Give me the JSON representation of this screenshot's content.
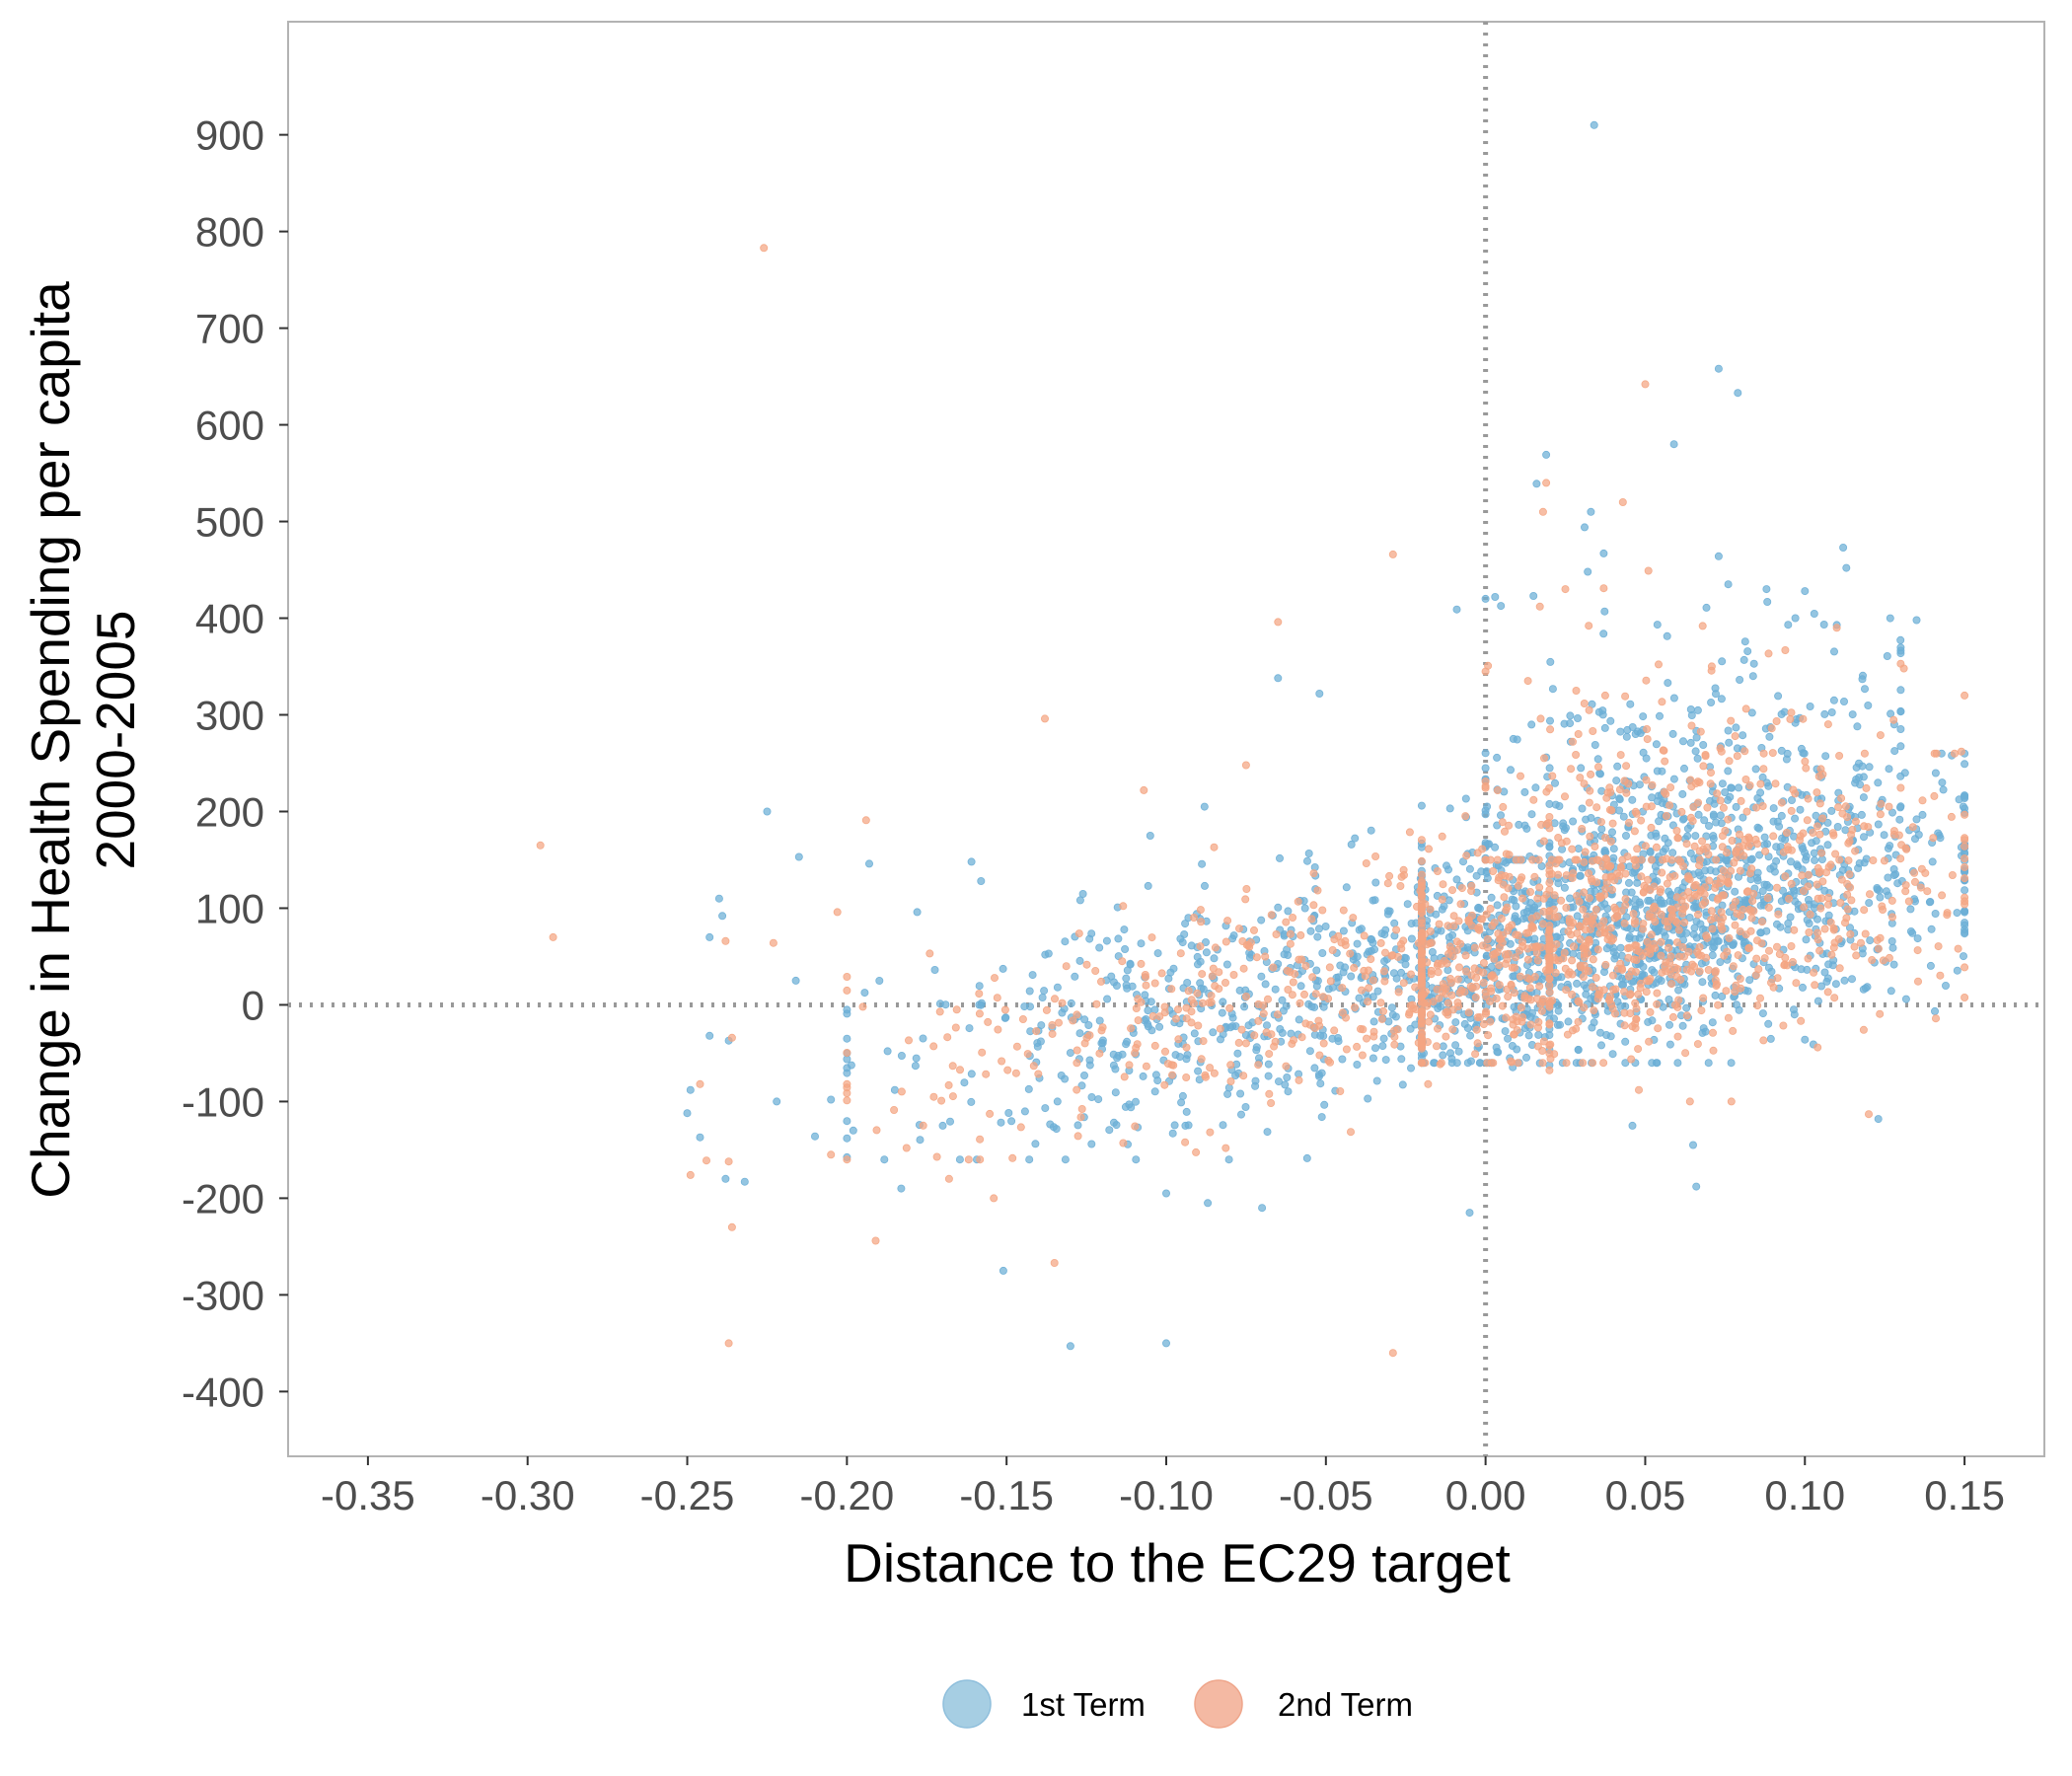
{
  "chart_data": {
    "type": "scatter",
    "xlabel": "Distance to the EC29 target",
    "ylabel_lines": [
      "Change in Health Spending per capita",
      "2000-2005"
    ],
    "xlim": [
      -0.375,
      0.175
    ],
    "ylim": [
      -467,
      1017
    ],
    "x_ticks": [
      -0.35,
      -0.3,
      -0.25,
      -0.2,
      -0.15,
      -0.1,
      -0.05,
      0.0,
      0.05,
      0.1,
      0.15
    ],
    "x_tick_labels": [
      "-0.35",
      "-0.30",
      "-0.25",
      "-0.20",
      "-0.15",
      "-0.10",
      "-0.05",
      "0.00",
      "0.05",
      "0.10",
      "0.15"
    ],
    "y_ticks": [
      -400,
      -300,
      -200,
      -100,
      0,
      100,
      200,
      300,
      400,
      500,
      600,
      700,
      800,
      900
    ],
    "y_tick_labels": [
      "-400",
      "-300",
      "-200",
      "-100",
      "0",
      "100",
      "200",
      "300",
      "400",
      "500",
      "600",
      "700",
      "800",
      "900"
    ],
    "reference_lines": {
      "x": 0,
      "y": 0,
      "style": "dotted",
      "color": "#999999"
    },
    "grid": false,
    "legend_position": "bottom",
    "series": [
      {
        "name": "1st Term",
        "color": "#6baed6",
        "points": [
          [
            0.034,
            910
          ],
          [
            0.073,
            658
          ],
          [
            0.079,
            633
          ],
          [
            0.059,
            580
          ],
          [
            0.019,
            569
          ],
          [
            0.016,
            539
          ],
          [
            0.033,
            510
          ],
          [
            0.031,
            494
          ],
          [
            0.112,
            473
          ],
          [
            0.037,
            467
          ],
          [
            0.073,
            464
          ],
          [
            0.032,
            448
          ],
          [
            0.113,
            452
          ],
          [
            0.076,
            435
          ],
          [
            0.1,
            428
          ],
          [
            0.088,
            430
          ],
          [
            0.003,
            422
          ],
          [
            0.015,
            423
          ],
          [
            -0.009,
            409
          ],
          [
            0.135,
            398
          ],
          [
            0.097,
            400
          ],
          [
            0.11,
            393
          ],
          [
            -0.052,
            322
          ],
          [
            -0.065,
            338
          ],
          [
            -0.225,
            200
          ],
          [
            -0.215,
            153
          ],
          [
            -0.161,
            148
          ],
          [
            -0.193,
            146
          ],
          [
            -0.158,
            128
          ],
          [
            -0.178,
            96
          ],
          [
            -0.105,
            175
          ],
          [
            -0.088,
            205
          ],
          [
            -0.24,
            110
          ],
          [
            -0.243,
            70
          ],
          [
            -0.239,
            92
          ],
          [
            -0.216,
            25
          ],
          [
            -0.237,
            -37
          ],
          [
            -0.243,
            -32
          ],
          [
            -0.249,
            -88
          ],
          [
            -0.246,
            -137
          ],
          [
            -0.25,
            -112
          ],
          [
            -0.238,
            -180
          ],
          [
            -0.232,
            -183
          ],
          [
            -0.222,
            -100
          ],
          [
            -0.21,
            -136
          ],
          [
            -0.205,
            -98
          ],
          [
            -0.198,
            -130
          ],
          [
            -0.185,
            -88
          ],
          [
            -0.183,
            -190
          ],
          [
            -0.17,
            -125
          ],
          [
            -0.151,
            -275
          ],
          [
            -0.13,
            -353
          ],
          [
            -0.1,
            -350
          ],
          [
            -0.087,
            -205
          ],
          [
            -0.1,
            -195
          ],
          [
            -0.07,
            -210
          ],
          [
            0.065,
            -145
          ],
          [
            0.066,
            -188
          ],
          [
            0.046,
            -125
          ],
          [
            0.1,
            -36
          ],
          [
            0.123,
            -118
          ],
          [
            -0.005,
            -215
          ],
          [
            0.143,
            230
          ],
          [
            0.149,
            163
          ],
          [
            0.15,
            97
          ],
          [
            0.14,
            148
          ],
          [
            0.128,
            290
          ],
          [
            0.146,
            258
          ],
          [
            0.118,
            337
          ]
        ],
        "cloud": [
          {
            "n": 1300,
            "x": [
              -0.02,
              0.15
            ],
            "y": [
              -60,
              260
            ],
            "mx": 0.05,
            "my": 80,
            "sx": 0.05,
            "sy": 60
          },
          {
            "n": 650,
            "x": [
              -0.2,
              0.02
            ],
            "y": [
              -160,
              220
            ],
            "mx": -0.06,
            "my": 10,
            "sx": 0.06,
            "sy": 60
          },
          {
            "n": 260,
            "x": [
              0.0,
              0.13
            ],
            "y": [
              150,
              420
            ],
            "mx": 0.06,
            "my": 240,
            "sx": 0.035,
            "sy": 70
          }
        ]
      },
      {
        "name": "2nd Term",
        "color": "#f4a582",
        "points": [
          [
            -0.226,
            783
          ],
          [
            0.05,
            642
          ],
          [
            -0.296,
            165
          ],
          [
            -0.292,
            70
          ],
          [
            0.019,
            540
          ],
          [
            0.018,
            510
          ],
          [
            0.043,
            520
          ],
          [
            -0.029,
            466
          ],
          [
            0.051,
            449
          ],
          [
            0.037,
            431
          ],
          [
            0.025,
            430
          ],
          [
            0.017,
            412
          ],
          [
            -0.065,
            396
          ],
          [
            0.068,
            392
          ],
          [
            0.11,
            390
          ],
          [
            -0.138,
            296
          ],
          [
            -0.075,
            248
          ],
          [
            -0.107,
            222
          ],
          [
            -0.194,
            191
          ],
          [
            -0.085,
            163
          ],
          [
            -0.203,
            96
          ],
          [
            -0.223,
            64
          ],
          [
            -0.238,
            66
          ],
          [
            -0.195,
            -2
          ],
          [
            -0.236,
            -34
          ],
          [
            -0.246,
            -82
          ],
          [
            -0.244,
            -161
          ],
          [
            -0.237,
            -162
          ],
          [
            -0.249,
            -176
          ],
          [
            -0.236,
            -230
          ],
          [
            -0.237,
            -350
          ],
          [
            -0.191,
            -244
          ],
          [
            -0.205,
            -155
          ],
          [
            -0.168,
            -180
          ],
          [
            -0.154,
            -200
          ],
          [
            -0.135,
            -267
          ],
          [
            -0.029,
            -360
          ],
          [
            0.048,
            -88
          ],
          [
            0.064,
            -100
          ],
          [
            0.077,
            -100
          ],
          [
            0.104,
            -44
          ],
          [
            0.12,
            -113
          ],
          [
            0.141,
            -14
          ],
          [
            0.148,
            58
          ],
          [
            0.149,
            262
          ],
          [
            0.15,
            320
          ],
          [
            0.131,
            348
          ],
          [
            0.128,
            180
          ],
          [
            -0.018,
            -82
          ]
        ],
        "cloud": [
          {
            "n": 900,
            "x": [
              -0.02,
              0.15
            ],
            "y": [
              -60,
              260
            ],
            "mx": 0.045,
            "my": 75,
            "sx": 0.05,
            "sy": 60
          },
          {
            "n": 430,
            "x": [
              -0.2,
              0.02
            ],
            "y": [
              -160,
              220
            ],
            "mx": -0.06,
            "my": 10,
            "sx": 0.06,
            "sy": 60
          },
          {
            "n": 150,
            "x": [
              0.0,
              0.13
            ],
            "y": [
              150,
              400
            ],
            "mx": 0.05,
            "my": 230,
            "sx": 0.035,
            "sy": 70
          }
        ]
      }
    ]
  },
  "legend": {
    "items": [
      {
        "label": "1st Term",
        "color": "#a6cee3"
      },
      {
        "label": "2nd Term",
        "color": "#f4b9a3"
      }
    ]
  }
}
